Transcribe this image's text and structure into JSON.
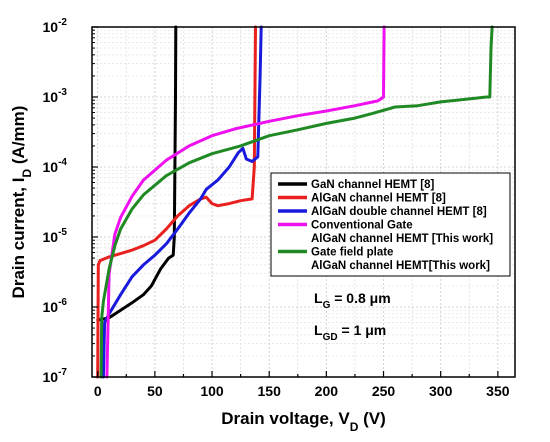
{
  "chart_data": {
    "type": "line",
    "xlabel": {
      "main": "Drain voltage, V",
      "sub": "D",
      "unit": " (V)"
    },
    "ylabel": {
      "main": "Drain current, I",
      "sub": "D",
      "unit": " (A/mm)"
    },
    "x_ticks": [
      "0",
      "50",
      "100",
      "150",
      "200",
      "250",
      "300",
      "350"
    ],
    "y_ticks": [
      {
        "base": "10",
        "exp": "-7"
      },
      {
        "base": "10",
        "exp": "-6"
      },
      {
        "base": "10",
        "exp": "-5"
      },
      {
        "base": "10",
        "exp": "-4"
      },
      {
        "base": "10",
        "exp": "-3"
      },
      {
        "base": "10",
        "exp": "-2"
      }
    ],
    "xlim": [
      -5,
      365
    ],
    "ylim": [
      1e-07,
      0.01
    ],
    "y_scale": "log",
    "grid": true,
    "legend_position": "center-right",
    "series": [
      {
        "name": "GaN channel HEMT [8]",
        "color": "#000000",
        "points": [
          [
            0,
            6.5e-07
          ],
          [
            10,
            7e-07
          ],
          [
            20,
            9e-07
          ],
          [
            30,
            1.15e-06
          ],
          [
            40,
            1.5e-06
          ],
          [
            47,
            2e-06
          ],
          [
            55,
            3.5e-06
          ],
          [
            62,
            5e-06
          ],
          [
            66,
            5.5e-06
          ],
          [
            67,
            1e-05
          ],
          [
            67.5,
            0.0001
          ],
          [
            68,
            0.001
          ],
          [
            68.3,
            0.01
          ]
        ]
      },
      {
        "name": "AlGaN channel HEMT [8]",
        "color": "#e8201e",
        "points": [
          [
            0,
            1e-07
          ],
          [
            0.5,
            4e-06
          ],
          [
            2,
            4.6e-06
          ],
          [
            10,
            5.2e-06
          ],
          [
            20,
            5.8e-06
          ],
          [
            30,
            6.5e-06
          ],
          [
            40,
            7.5e-06
          ],
          [
            50,
            9e-06
          ],
          [
            60,
            1.3e-05
          ],
          [
            70,
            2e-05
          ],
          [
            80,
            2.8e-05
          ],
          [
            90,
            3.5e-05
          ],
          [
            95,
            3.7e-05
          ],
          [
            100,
            3e-05
          ],
          [
            105,
            2.8e-05
          ],
          [
            115,
            3e-05
          ],
          [
            125,
            3.3e-05
          ],
          [
            135,
            3.5e-05
          ],
          [
            137,
            0.0001
          ],
          [
            137.5,
            0.001
          ],
          [
            138,
            0.01
          ]
        ]
      },
      {
        "name": "AlGaN double channel HEMT [8]",
        "color": "#1a1adc",
        "points": [
          [
            5,
            1e-07
          ],
          [
            6,
            6e-07
          ],
          [
            10,
            8e-07
          ],
          [
            20,
            1.5e-06
          ],
          [
            30,
            2.7e-06
          ],
          [
            40,
            4e-06
          ],
          [
            50,
            5.5e-06
          ],
          [
            60,
            8e-06
          ],
          [
            70,
            1.3e-05
          ],
          [
            80,
            2.2e-05
          ],
          [
            90,
            3.5e-05
          ],
          [
            95,
            4.8e-05
          ],
          [
            105,
            6.5e-05
          ],
          [
            115,
            0.0001
          ],
          [
            123,
            0.00016
          ],
          [
            127,
            0.000185
          ],
          [
            130,
            0.00013
          ],
          [
            135,
            0.00012
          ],
          [
            140,
            0.00014
          ],
          [
            142,
            0.002
          ],
          [
            143,
            0.01
          ]
        ]
      },
      {
        "name": "Conventional Gate",
        "name2": "AlGaN channel HEMT [This work]",
        "color": "#ee10ee",
        "points": [
          [
            8,
            1e-07
          ],
          [
            10,
            3e-06
          ],
          [
            15,
            1.1e-05
          ],
          [
            20,
            1.9e-05
          ],
          [
            30,
            3.8e-05
          ],
          [
            40,
            6.5e-05
          ],
          [
            60,
            0.000125
          ],
          [
            80,
            0.0002
          ],
          [
            100,
            0.00028
          ],
          [
            120,
            0.00035
          ],
          [
            150,
            0.00045
          ],
          [
            175,
            0.00054
          ],
          [
            200,
            0.00063
          ],
          [
            225,
            0.00075
          ],
          [
            245,
            0.00088
          ],
          [
            248,
            0.00095
          ],
          [
            250,
            0.001
          ],
          [
            250.5,
            0.01
          ]
        ]
      },
      {
        "name": "Gate field plate",
        "name2": "AlGaN channel HEMT[This work]",
        "color": "#1f8a24",
        "points": [
          [
            3,
            1e-07
          ],
          [
            3.5,
            7e-07
          ],
          [
            5,
            1.2e-06
          ],
          [
            10,
            3.5e-06
          ],
          [
            15,
            7.5e-06
          ],
          [
            20,
            1.3e-05
          ],
          [
            30,
            2.5e-05
          ],
          [
            40,
            4e-05
          ],
          [
            60,
            7.5e-05
          ],
          [
            80,
            0.000115
          ],
          [
            100,
            0.000155
          ],
          [
            125,
            0.0002
          ],
          [
            150,
            0.00028
          ],
          [
            175,
            0.00034
          ],
          [
            200,
            0.00042
          ],
          [
            225,
            0.0005
          ],
          [
            240,
            0.00058
          ],
          [
            260,
            0.00072
          ],
          [
            280,
            0.00075
          ],
          [
            300,
            0.00085
          ],
          [
            320,
            0.00092
          ],
          [
            340,
            0.001
          ],
          [
            343,
            0.001
          ],
          [
            344,
            0.005
          ],
          [
            345,
            0.01
          ]
        ]
      }
    ],
    "annotations": [
      {
        "main": "L",
        "sub": "G",
        "rest": " = 0.8 μm"
      },
      {
        "main": "L",
        "sub": "GD",
        "rest": " = 1 μm"
      }
    ]
  }
}
